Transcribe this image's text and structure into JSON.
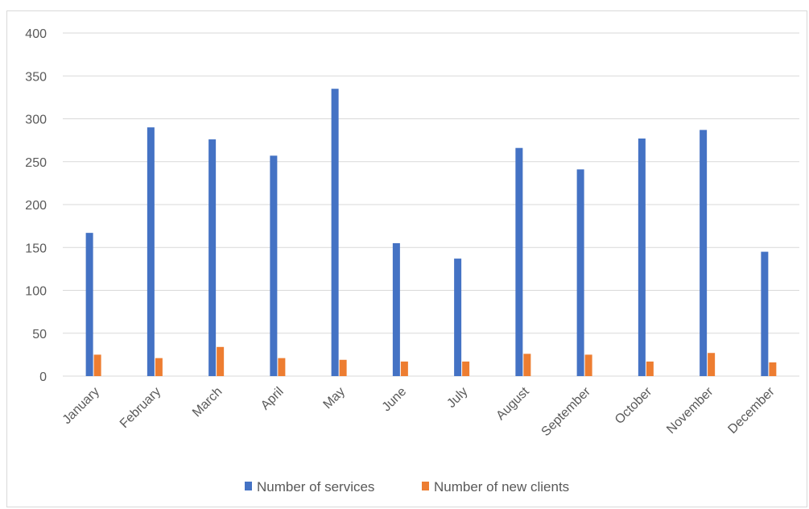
{
  "chart_data": {
    "type": "bar",
    "title": "",
    "xlabel": "",
    "ylabel": "",
    "categories": [
      "January",
      "February",
      "March",
      "April",
      "May",
      "June",
      "July",
      "August",
      "September",
      "October",
      "November",
      "December"
    ],
    "series": [
      {
        "name": "Number of services",
        "color": "#4472c4",
        "values": [
          167,
          290,
          276,
          257,
          335,
          155,
          137,
          266,
          241,
          277,
          287,
          145
        ]
      },
      {
        "name": "Number of new clients",
        "color": "#ed7d31",
        "values": [
          25,
          21,
          34,
          21,
          19,
          17,
          17,
          26,
          25,
          17,
          27,
          16
        ]
      }
    ],
    "ylim": [
      0,
      400
    ],
    "yticks": [
      "0",
      "50",
      "100",
      "150",
      "200",
      "250",
      "300",
      "350",
      "400"
    ],
    "grid": true,
    "legend_position": "bottom"
  }
}
